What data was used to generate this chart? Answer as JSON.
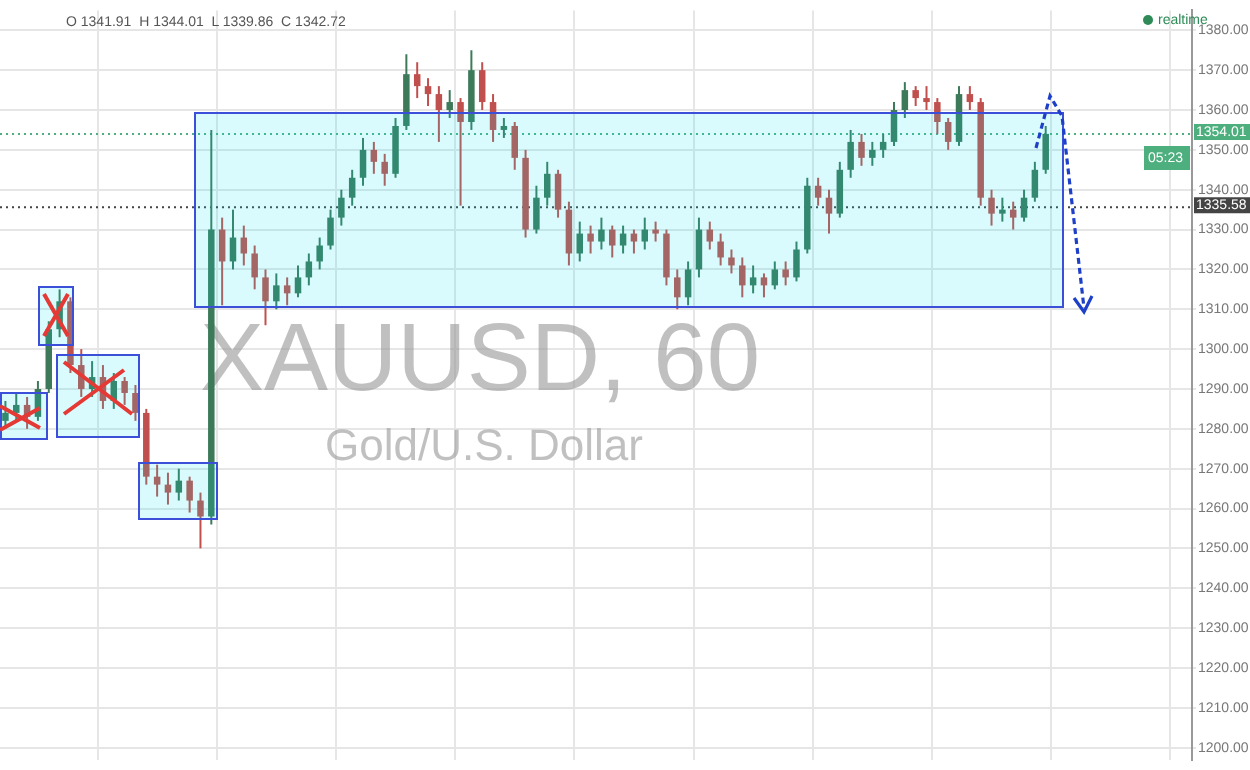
{
  "chart_data": {
    "type": "candlestick",
    "categories": [
      null,
      null,
      null,
      null,
      null,
      null,
      null,
      null,
      null,
      null,
      null,
      null,
      null,
      null,
      null,
      null,
      null,
      null,
      null,
      null,
      null,
      null,
      null,
      null,
      null,
      null,
      null,
      null,
      null,
      null,
      null,
      null,
      null,
      null,
      null,
      null,
      null,
      null,
      null,
      null,
      null,
      null,
      null,
      null,
      null,
      null,
      null,
      null,
      null,
      null,
      null,
      null,
      null,
      null,
      null,
      null,
      null,
      null,
      null,
      null,
      null,
      null,
      null,
      null,
      null,
      null,
      null,
      null,
      null,
      null,
      null,
      null,
      null,
      null,
      null,
      null,
      null,
      null,
      null,
      null,
      null,
      null,
      null,
      null,
      null,
      null,
      null,
      null,
      null,
      null,
      null,
      null,
      null,
      null,
      null,
      null,
      null,
      null,
      null,
      null,
      null,
      null,
      null,
      null,
      null,
      null,
      null,
      null,
      null,
      null
    ],
    "ohlc": [
      [
        1282,
        1287,
        1280,
        1284
      ],
      [
        1284,
        1289,
        1282,
        1286
      ],
      [
        1286,
        1288,
        1280,
        1283
      ],
      [
        1283,
        1292,
        1282,
        1290
      ],
      [
        1290,
        1307,
        1289,
        1305
      ],
      [
        1305,
        1315,
        1303,
        1312
      ],
      [
        1312,
        1313,
        1294,
        1296
      ],
      [
        1296,
        1300,
        1288,
        1290
      ],
      [
        1290,
        1297,
        1288,
        1293
      ],
      [
        1293,
        1296,
        1285,
        1287
      ],
      [
        1287,
        1294,
        1285,
        1292
      ],
      [
        1292,
        1293,
        1286,
        1289
      ],
      [
        1289,
        1291,
        1282,
        1284
      ],
      [
        1284,
        1285,
        1266,
        1268
      ],
      [
        1268,
        1271,
        1263,
        1266
      ],
      [
        1266,
        1269,
        1261,
        1264
      ],
      [
        1264,
        1270,
        1262,
        1267
      ],
      [
        1267,
        1268,
        1259,
        1262
      ],
      [
        1262,
        1264,
        1250,
        1258
      ],
      [
        1258,
        1355,
        1256,
        1330
      ],
      [
        1330,
        1333,
        1311,
        1322
      ],
      [
        1322,
        1335,
        1320,
        1328
      ],
      [
        1328,
        1331,
        1321,
        1324
      ],
      [
        1324,
        1326,
        1315,
        1318
      ],
      [
        1318,
        1320,
        1306,
        1312
      ],
      [
        1312,
        1319,
        1310,
        1316
      ],
      [
        1316,
        1318,
        1311,
        1314
      ],
      [
        1314,
        1321,
        1313,
        1318
      ],
      [
        1318,
        1324,
        1316,
        1322
      ],
      [
        1322,
        1328,
        1320,
        1326
      ],
      [
        1326,
        1335,
        1325,
        1333
      ],
      [
        1333,
        1340,
        1331,
        1338
      ],
      [
        1338,
        1345,
        1336,
        1343
      ],
      [
        1343,
        1353,
        1341,
        1350
      ],
      [
        1350,
        1352,
        1344,
        1347
      ],
      [
        1347,
        1349,
        1341,
        1344
      ],
      [
        1344,
        1358,
        1343,
        1356
      ],
      [
        1356,
        1374,
        1355,
        1369
      ],
      [
        1369,
        1372,
        1363,
        1366
      ],
      [
        1366,
        1368,
        1361,
        1364
      ],
      [
        1364,
        1366,
        1352,
        1360
      ],
      [
        1360,
        1365,
        1358,
        1362
      ],
      [
        1362,
        1363,
        1336,
        1357
      ],
      [
        1357,
        1375,
        1355,
        1370
      ],
      [
        1370,
        1372,
        1360,
        1362
      ],
      [
        1362,
        1364,
        1352,
        1355
      ],
      [
        1355,
        1358,
        1353,
        1356
      ],
      [
        1356,
        1357,
        1345,
        1348
      ],
      [
        1348,
        1350,
        1328,
        1330
      ],
      [
        1330,
        1341,
        1329,
        1338
      ],
      [
        1338,
        1347,
        1336,
        1344
      ],
      [
        1344,
        1345,
        1333,
        1335
      ],
      [
        1335,
        1337,
        1321,
        1324
      ],
      [
        1324,
        1332,
        1322,
        1329
      ],
      [
        1329,
        1331,
        1324,
        1327
      ],
      [
        1327,
        1333,
        1325,
        1330
      ],
      [
        1330,
        1331,
        1323,
        1326
      ],
      [
        1326,
        1331,
        1324,
        1329
      ],
      [
        1329,
        1330,
        1324,
        1327
      ],
      [
        1327,
        1333,
        1325,
        1330
      ],
      [
        1330,
        1332,
        1327,
        1329
      ],
      [
        1329,
        1330,
        1316,
        1318
      ],
      [
        1318,
        1320,
        1310,
        1313
      ],
      [
        1313,
        1322,
        1311,
        1320
      ],
      [
        1320,
        1333,
        1318,
        1330
      ],
      [
        1330,
        1332,
        1325,
        1327
      ],
      [
        1327,
        1329,
        1321,
        1323
      ],
      [
        1323,
        1325,
        1319,
        1321
      ],
      [
        1321,
        1323,
        1313,
        1316
      ],
      [
        1316,
        1321,
        1314,
        1318
      ],
      [
        1318,
        1319,
        1313,
        1316
      ],
      [
        1316,
        1322,
        1315,
        1320
      ],
      [
        1320,
        1322,
        1316,
        1318
      ],
      [
        1318,
        1327,
        1317,
        1325
      ],
      [
        1325,
        1343,
        1324,
        1341
      ],
      [
        1341,
        1343,
        1336,
        1338
      ],
      [
        1338,
        1340,
        1329,
        1334
      ],
      [
        1334,
        1347,
        1333,
        1345
      ],
      [
        1345,
        1355,
        1343,
        1352
      ],
      [
        1352,
        1354,
        1346,
        1348
      ],
      [
        1348,
        1352,
        1346,
        1350
      ],
      [
        1350,
        1354,
        1348,
        1352
      ],
      [
        1352,
        1362,
        1351,
        1360
      ],
      [
        1360,
        1367,
        1358,
        1365
      ],
      [
        1365,
        1366,
        1361,
        1363
      ],
      [
        1363,
        1366,
        1360,
        1362
      ],
      [
        1362,
        1363,
        1354,
        1357
      ],
      [
        1357,
        1358,
        1350,
        1352
      ],
      [
        1352,
        1366,
        1351,
        1364
      ],
      [
        1364,
        1366,
        1360,
        1362
      ],
      [
        1362,
        1363,
        1336,
        1338
      ],
      [
        1338,
        1340,
        1331,
        1334
      ],
      [
        1334,
        1338,
        1332,
        1335
      ],
      [
        1335,
        1337,
        1330,
        1333
      ],
      [
        1333,
        1340,
        1332,
        1338
      ],
      [
        1338,
        1347,
        1337,
        1345
      ],
      [
        1345,
        1356,
        1344,
        1354.01
      ],
      null,
      null,
      null,
      null,
      null,
      null,
      null,
      null,
      null,
      null,
      null,
      null,
      null
    ],
    "ylim": [
      1197,
      1385
    ],
    "yticks": [
      {
        "value": 1200,
        "label": "1200.00"
      },
      {
        "value": 1210,
        "label": "1210.00"
      },
      {
        "value": 1220,
        "label": "1220.00"
      },
      {
        "value": 1230,
        "label": "1230.00"
      },
      {
        "value": 1240,
        "label": "1240.00"
      },
      {
        "value": 1250,
        "label": "1250.00"
      },
      {
        "value": 1260,
        "label": "1260.00"
      },
      {
        "value": 1270,
        "label": "1270.00"
      },
      {
        "value": 1280,
        "label": "1280.00"
      },
      {
        "value": 1290,
        "label": "1290.00"
      },
      {
        "value": 1300,
        "label": "1300.00"
      },
      {
        "value": 1310,
        "label": "1310.00"
      },
      {
        "value": 1320,
        "label": "1320.00"
      },
      {
        "value": 1330,
        "label": "1330.00"
      },
      {
        "value": 1340,
        "label": "1340.00"
      },
      {
        "value": 1350,
        "label": "1350.00"
      },
      {
        "value": 1360,
        "label": "1360.00"
      },
      {
        "value": 1370,
        "label": "1370.00"
      },
      {
        "value": 1380,
        "label": "1380.00"
      }
    ],
    "tick_labels": "y",
    "grid": true,
    "ref_lines": [
      {
        "axis": "y",
        "value": 1354.01,
        "label": "1354.01",
        "color": "#4caf7d",
        "line_style": "dotted"
      },
      {
        "axis": "y",
        "value": 1335.58,
        "label": "1335.58",
        "color": "#444444",
        "line_style": "dotted"
      }
    ],
    "annotations": [
      "O 1341.91  H 1344.01  L 1339.86  C 1342.72",
      "XAUUSD, 60",
      "Gold/U.S. Dollar",
      "realtime",
      "05:23"
    ],
    "legend": false
  }
}
